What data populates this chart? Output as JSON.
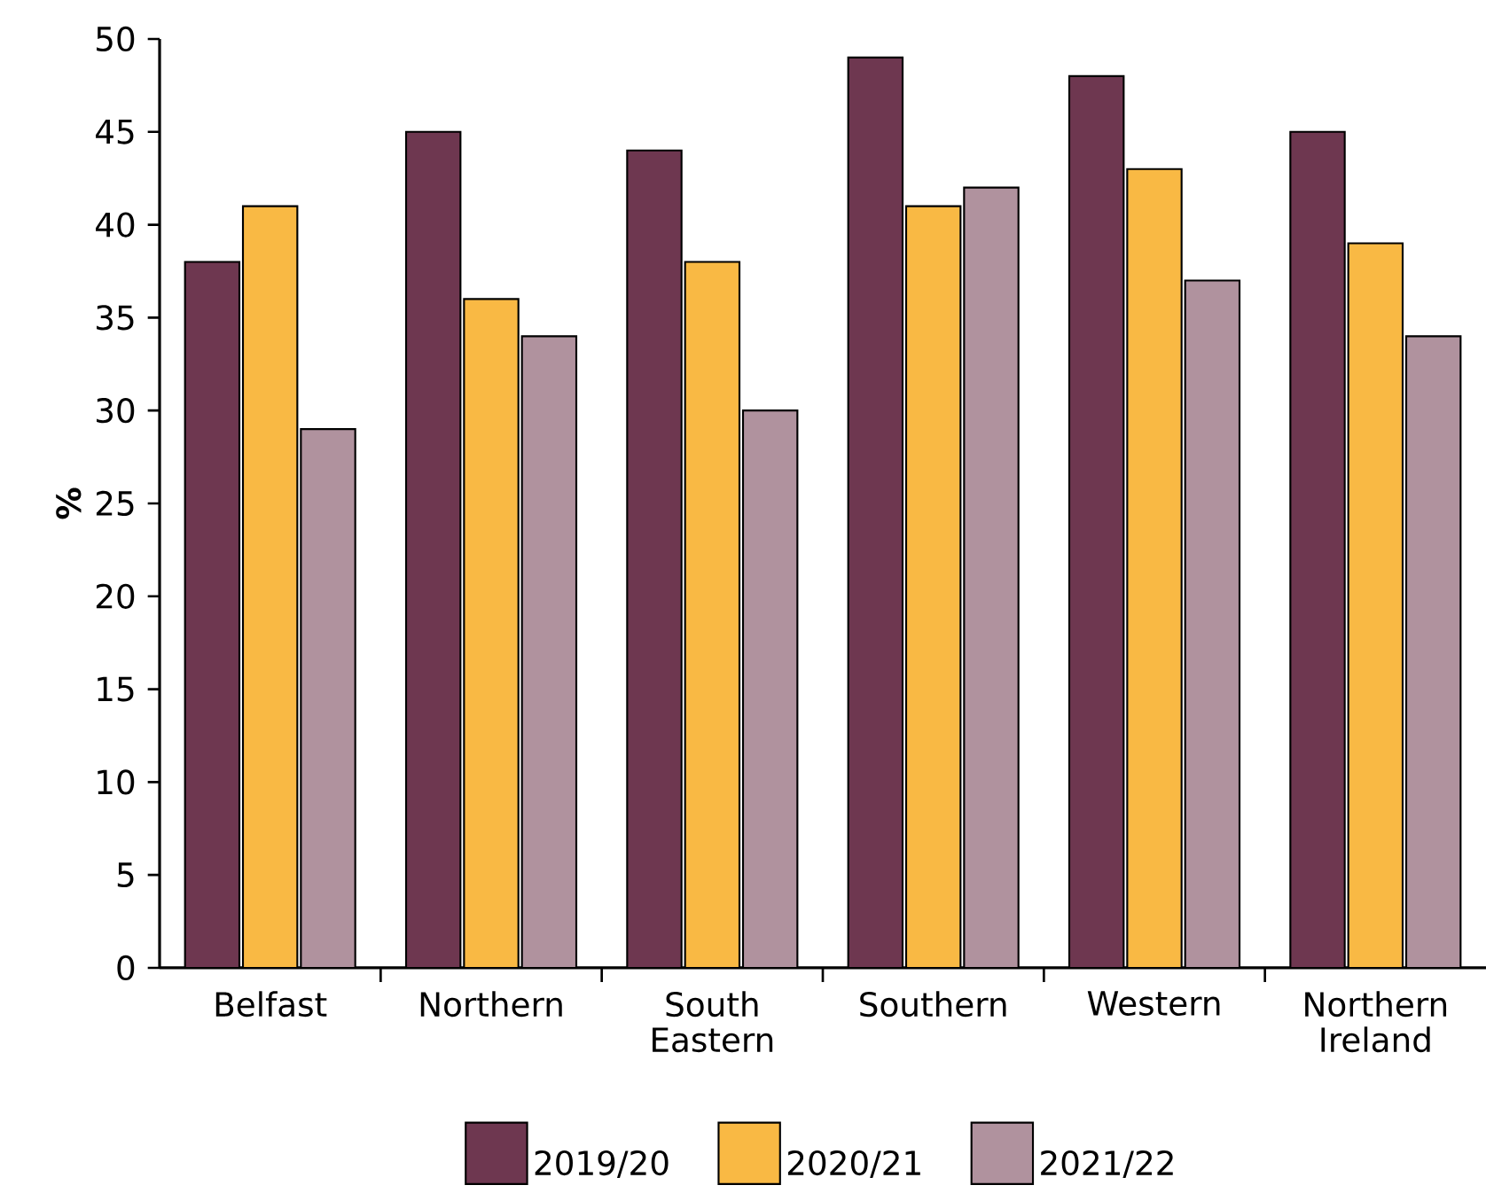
{
  "chart_data": {
    "type": "bar",
    "ylabel": "%",
    "categories": [
      "Belfast",
      "Northern",
      "South Eastern",
      "Southern",
      "Western",
      "Northern Ireland"
    ],
    "series": [
      {
        "name": "2019/20",
        "color": "#6e3750",
        "values": [
          38,
          45,
          44,
          49,
          48,
          45
        ]
      },
      {
        "name": "2020/21",
        "color": "#f9b944",
        "values": [
          41,
          36,
          38,
          41,
          43,
          39
        ]
      },
      {
        "name": "2021/22",
        "color": "#b0929e",
        "values": [
          29,
          34,
          30,
          42,
          37,
          34
        ]
      }
    ],
    "ylim": [
      0,
      50
    ],
    "yticks": [
      0,
      5,
      10,
      15,
      20,
      25,
      30,
      35,
      40,
      45,
      50
    ],
    "legend": "bottom"
  }
}
